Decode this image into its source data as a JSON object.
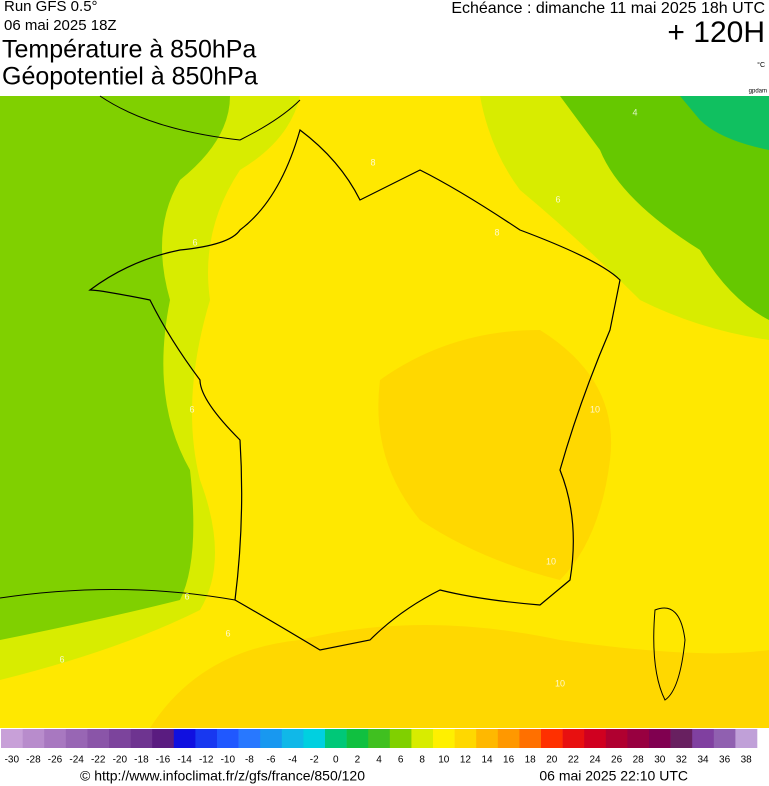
{
  "header": {
    "model": "Run GFS 0.5°",
    "run": "06 mai 2025 18Z",
    "validity": "Echéance : dimanche 11 mai 2025 18h UTC",
    "lead": "+ 120H",
    "title_line1": "Température à 850hPa",
    "title_line2": "Géopotentiel à 850hPa",
    "unit": "°C",
    "source_tag": "gpdam"
  },
  "map": {
    "contour_labels": [
      "4",
      "8",
      "6",
      "8",
      "6",
      "6",
      "10",
      "10",
      "6",
      "6",
      "6",
      "10"
    ]
  },
  "colorbar": {
    "ticks": [
      -30,
      -28,
      -26,
      -24,
      -22,
      -20,
      -18,
      -16,
      -14,
      -12,
      -10,
      -8,
      -6,
      -4,
      -2,
      0,
      2,
      4,
      6,
      8,
      10,
      12,
      14,
      16,
      18,
      20,
      22,
      24,
      26,
      28,
      30,
      32,
      34,
      36,
      38
    ],
    "colors": [
      "#c8a0d8",
      "#b88ccc",
      "#a878c0",
      "#9866b4",
      "#8a55a8",
      "#7c449c",
      "#6e3490",
      "#5a1c80",
      "#1010e0",
      "#1838f0",
      "#2058ff",
      "#2878ff",
      "#1898f0",
      "#10b8e8",
      "#00d0e0",
      "#00c878",
      "#10c040",
      "#40c020",
      "#80d000",
      "#d8ec00",
      "#fff000",
      "#ffd800",
      "#ffb800",
      "#ff9800",
      "#ff7000",
      "#ff3000",
      "#e81010",
      "#d00020",
      "#b00030",
      "#980040",
      "#800050",
      "#682060",
      "#8040a0",
      "#9060b0",
      "#c0a0d8"
    ]
  },
  "footer": {
    "url": "© http://www.infoclimat.fr/z/gfs/france/850/120",
    "timestamp": "06 mai 2025 22:10 UTC"
  }
}
